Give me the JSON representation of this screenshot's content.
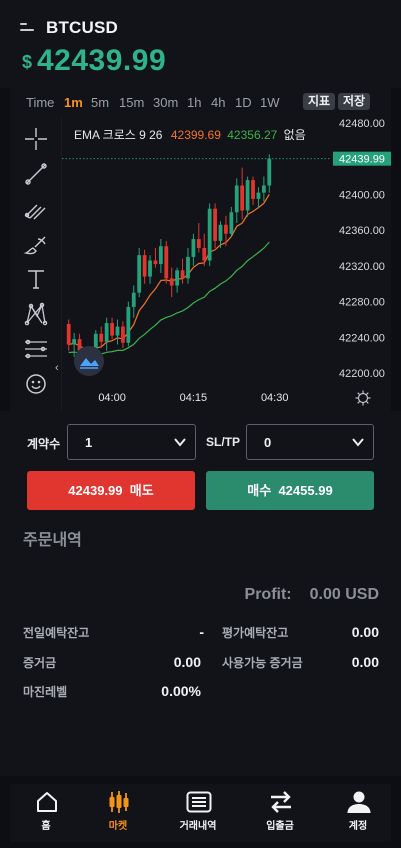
{
  "header": {
    "symbol": "BTCUSD",
    "currency_symbol": "$",
    "price": "42439.99",
    "price_color": "#2fb48a"
  },
  "chart_toolbar": {
    "timeframes": [
      "Time",
      "1m",
      "5m",
      "15m",
      "30m",
      "1h",
      "4h",
      "1D",
      "1W"
    ],
    "active_timeframe": "1m",
    "indicator_label": "지표",
    "save_label": "저장"
  },
  "drawing_tools": [
    {
      "icon": "crosshair-icon"
    },
    {
      "icon": "trendline-icon"
    },
    {
      "icon": "fib-icon"
    },
    {
      "icon": "brush-icon"
    },
    {
      "icon": "text-icon"
    },
    {
      "icon": "pattern-icon"
    },
    {
      "icon": "measure-icon"
    },
    {
      "icon": "emoji-icon"
    }
  ],
  "chart": {
    "legend_prefix": "EMA 크로스 9 26",
    "ema_fast_value": "42399.69",
    "ema_slow_value": "42356.27",
    "legend_suffix": "없음",
    "current_price_label": "42439.99",
    "y_ticks": [
      "42480.00",
      "42400.00",
      "42360.00",
      "42320.00",
      "42280.00",
      "42240.00",
      "42200.00"
    ],
    "x_ticks": [
      "04:00",
      "04:15",
      "04:30"
    ],
    "settings_icon": "gear-icon",
    "logo_icon": "tradingview-logo-icon"
  },
  "chart_data": {
    "type": "candlestick",
    "title": "BTCUSD",
    "x": [
      "03:52",
      "03:53",
      "03:54",
      "03:55",
      "03:56",
      "03:57",
      "03:58",
      "03:59",
      "04:00",
      "04:01",
      "04:02",
      "04:03",
      "04:04",
      "04:05",
      "04:06",
      "04:07",
      "04:08",
      "04:09",
      "04:10",
      "04:11",
      "04:12",
      "04:13",
      "04:14",
      "04:15",
      "04:16",
      "04:17",
      "04:18",
      "04:19",
      "04:20",
      "04:21",
      "04:22",
      "04:23",
      "04:24",
      "04:25",
      "04:26",
      "04:27",
      "04:28",
      "04:29"
    ],
    "series": [
      {
        "ohlc": [
          [
            42255,
            42260,
            42225,
            42232
          ],
          [
            42232,
            42245,
            42218,
            42238
          ],
          [
            42238,
            42244,
            42216,
            42221
          ],
          [
            42221,
            42228,
            42204,
            42210
          ],
          [
            42210,
            42222,
            42200,
            42214
          ],
          [
            42214,
            42248,
            42210,
            42244
          ],
          [
            42244,
            42252,
            42228,
            42235
          ],
          [
            42235,
            42262,
            42225,
            42256
          ],
          [
            42256,
            42262,
            42238,
            42242
          ],
          [
            42242,
            42260,
            42232,
            42252
          ],
          [
            42252,
            42258,
            42228,
            42234
          ],
          [
            42234,
            42280,
            42230,
            42274
          ],
          [
            42274,
            42298,
            42262,
            42290
          ],
          [
            42290,
            42340,
            42285,
            42332
          ],
          [
            42332,
            42338,
            42300,
            42308
          ],
          [
            42308,
            42332,
            42300,
            42326
          ],
          [
            42326,
            42340,
            42318,
            42322
          ],
          [
            42322,
            42350,
            42312,
            42342
          ],
          [
            42342,
            42348,
            42300,
            42306
          ],
          [
            42306,
            42318,
            42285,
            42298
          ],
          [
            42298,
            42318,
            42290,
            42315
          ],
          [
            42315,
            42328,
            42300,
            42306
          ],
          [
            42306,
            42340,
            42300,
            42330
          ],
          [
            42330,
            42356,
            42320,
            42350
          ],
          [
            42350,
            42368,
            42335,
            42340
          ],
          [
            42340,
            42356,
            42320,
            42326
          ],
          [
            42326,
            42390,
            42320,
            42384
          ],
          [
            42384,
            42390,
            42340,
            42348
          ],
          [
            42348,
            42370,
            42340,
            42366
          ],
          [
            42366,
            42376,
            42342,
            42356
          ],
          [
            42356,
            42386,
            42352,
            42380
          ],
          [
            42380,
            42418,
            42368,
            42410
          ],
          [
            42410,
            42430,
            42372,
            42382
          ],
          [
            42382,
            42420,
            42375,
            42416
          ],
          [
            42416,
            42420,
            42388,
            42395
          ],
          [
            42395,
            42408,
            42385,
            42402
          ],
          [
            42402,
            42420,
            42392,
            42410
          ],
          [
            42410,
            42445,
            42402,
            42440
          ]
        ]
      },
      {
        "name": "EMA 9",
        "last": 42399.69
      },
      {
        "name": "EMA 26",
        "last": 42356.27
      }
    ],
    "ylim": [
      42190,
      42490
    ],
    "current_price": 42439.99
  },
  "order_form": {
    "quantity_label": "계약수",
    "quantity_value": "1",
    "sltp_label": "SL/TP",
    "sltp_value": "0",
    "sell_price": "42439.99",
    "sell_label": "매도",
    "buy_label": "매수",
    "buy_price": "42455.99",
    "sell_color": "#e0362f",
    "buy_color": "#2a8c6c"
  },
  "order_history": {
    "title": "주문내역",
    "profit_label": "Profit:",
    "profit_value": "0.00 USD"
  },
  "account": {
    "prev_balance_label": "전일예탁잔고",
    "prev_balance_value": "-",
    "eval_balance_label": "평가예탁잔고",
    "eval_balance_value": "0.00",
    "margin_label": "증거금",
    "margin_value": "0.00",
    "available_margin_label": "사용가능 증거금",
    "available_margin_value": "0.00",
    "margin_level_label": "마진레벨",
    "margin_level_value": "0.00%"
  },
  "tabbar": {
    "items": [
      {
        "label": "홈",
        "icon": "home-icon"
      },
      {
        "label": "마켓",
        "icon": "candles-icon"
      },
      {
        "label": "거래내역",
        "icon": "list-icon"
      },
      {
        "label": "입출금",
        "icon": "transfer-icon"
      },
      {
        "label": "계정",
        "icon": "user-icon"
      }
    ],
    "active": "마켓",
    "active_color": "#f7931a"
  }
}
